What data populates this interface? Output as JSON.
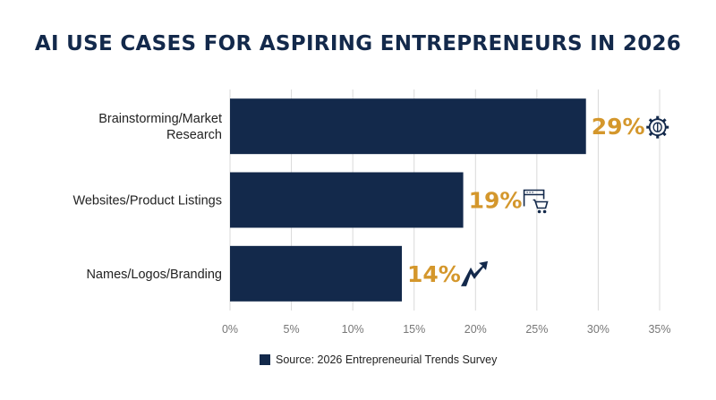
{
  "colors": {
    "bar": "#13294b",
    "accent": "#d4972c",
    "title": "#13294b",
    "grid": "#d9d9d9",
    "tick_text": "#777777",
    "label_text": "#222222"
  },
  "chart_data": {
    "type": "bar",
    "orientation": "horizontal",
    "title": "AI USE CASES FOR ASPIRING ENTREPRENEURS IN 2026",
    "categories": [
      "Brainstorming/Market Research",
      "Websites/Product Listings",
      "Names/Logos/Branding"
    ],
    "values": [
      29,
      19,
      14
    ],
    "value_labels": [
      "29%",
      "19%",
      "14%"
    ],
    "icons": [
      "gear-brain-icon",
      "browser-cart-icon",
      "rising-arrow-logo-icon"
    ],
    "x_ticks": [
      0,
      5,
      10,
      15,
      20,
      25,
      30,
      35
    ],
    "x_tick_labels": [
      "0%",
      "5%",
      "10%",
      "15%",
      "20%",
      "25%",
      "30%",
      "35%"
    ],
    "xlim": [
      0,
      35
    ],
    "grid": true,
    "legend": {
      "position": "bottom",
      "entries": [
        "Source: 2026 Entrepreneurial Trends Survey"
      ]
    }
  }
}
